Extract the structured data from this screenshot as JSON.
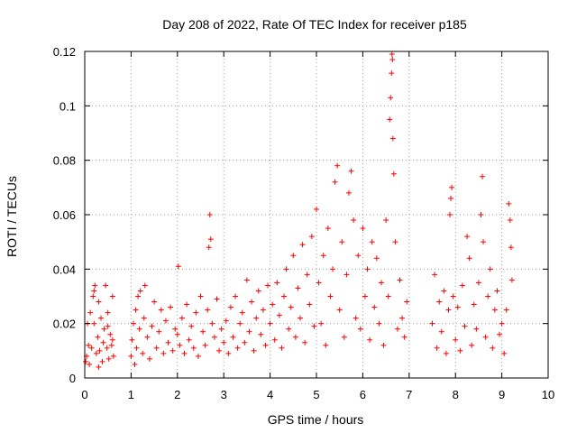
{
  "chart_data": {
    "type": "scatter",
    "title": "Day 208 of 2022, Rate Of TEC Index for receiver p185",
    "xlabel": "GPS time / hours",
    "ylabel": "ROTI / TECUs",
    "xlim": [
      0,
      10
    ],
    "ylim": [
      0,
      0.12
    ],
    "x_ticks": [
      "0",
      "1",
      "2",
      "3",
      "4",
      "5",
      "6",
      "7",
      "8",
      "9",
      "10"
    ],
    "y_ticks": [
      "0",
      "0.02",
      "0.04",
      "0.06",
      "0.08",
      "0.1",
      "0.12"
    ],
    "grid": true,
    "marker": "+",
    "marker_color": "#ff0000",
    "series": [
      {
        "name": "ROTI",
        "points": [
          [
            0.02,
            0.006
          ],
          [
            0.04,
            0.008
          ],
          [
            0.06,
            0.02
          ],
          [
            0.08,
            0.012
          ],
          [
            0.1,
            0.005
          ],
          [
            0.12,
            0.024
          ],
          [
            0.15,
            0.011
          ],
          [
            0.18,
            0.03
          ],
          [
            0.2,
            0.032
          ],
          [
            0.22,
            0.034
          ],
          [
            0.25,
            0.009
          ],
          [
            0.28,
            0.015
          ],
          [
            0.3,
            0.028
          ],
          [
            0.32,
            0.01
          ],
          [
            0.35,
            0.022
          ],
          [
            0.38,
            0.006
          ],
          [
            0.4,
            0.013
          ],
          [
            0.42,
            0.018
          ],
          [
            0.45,
            0.034
          ],
          [
            0.48,
            0.011
          ],
          [
            0.5,
            0.024
          ],
          [
            0.52,
            0.007
          ],
          [
            0.55,
            0.016
          ],
          [
            0.58,
            0.012
          ],
          [
            0.6,
            0.03
          ],
          [
            0.62,
            0.008
          ],
          [
            0.2,
            0.02
          ],
          [
            0.3,
            0.004
          ],
          [
            0.5,
            0.019
          ],
          [
            0.6,
            0.014
          ],
          [
            1.0,
            0.008
          ],
          [
            1.02,
            0.014
          ],
          [
            1.05,
            0.02
          ],
          [
            1.08,
            0.005
          ],
          [
            1.1,
            0.025
          ],
          [
            1.12,
            0.011
          ],
          [
            1.15,
            0.03
          ],
          [
            1.18,
            0.018
          ],
          [
            1.2,
            0.032
          ],
          [
            1.25,
            0.009
          ],
          [
            1.28,
            0.022
          ],
          [
            1.3,
            0.034
          ],
          [
            1.35,
            0.015
          ],
          [
            1.4,
            0.007
          ],
          [
            1.45,
            0.019
          ],
          [
            1.5,
            0.028
          ],
          [
            1.55,
            0.011
          ],
          [
            1.6,
            0.017
          ],
          [
            1.65,
            0.025
          ],
          [
            1.7,
            0.009
          ],
          [
            1.75,
            0.021
          ],
          [
            1.8,
            0.013
          ],
          [
            1.85,
            0.026
          ],
          [
            1.9,
            0.01
          ],
          [
            1.95,
            0.018
          ],
          [
            2.0,
            0.016
          ],
          [
            2.02,
            0.041
          ],
          [
            2.05,
            0.012
          ],
          [
            2.1,
            0.022
          ],
          [
            2.15,
            0.009
          ],
          [
            2.2,
            0.027
          ],
          [
            2.25,
            0.014
          ],
          [
            2.3,
            0.019
          ],
          [
            2.35,
            0.011
          ],
          [
            2.4,
            0.024
          ],
          [
            2.45,
            0.008
          ],
          [
            2.5,
            0.03
          ],
          [
            2.55,
            0.017
          ],
          [
            2.6,
            0.012
          ],
          [
            2.65,
            0.025
          ],
          [
            2.68,
            0.048
          ],
          [
            2.7,
            0.06
          ],
          [
            2.72,
            0.051
          ],
          [
            2.75,
            0.02
          ],
          [
            2.8,
            0.015
          ],
          [
            2.85,
            0.029
          ],
          [
            2.9,
            0.01
          ],
          [
            2.95,
            0.018
          ],
          [
            3.0,
            0.013
          ],
          [
            3.05,
            0.021
          ],
          [
            3.1,
            0.009
          ],
          [
            3.15,
            0.026
          ],
          [
            3.2,
            0.015
          ],
          [
            3.25,
            0.03
          ],
          [
            3.3,
            0.011
          ],
          [
            3.35,
            0.02
          ],
          [
            3.4,
            0.024
          ],
          [
            3.45,
            0.013
          ],
          [
            3.5,
            0.036
          ],
          [
            3.55,
            0.017
          ],
          [
            3.6,
            0.028
          ],
          [
            3.65,
            0.01
          ],
          [
            3.7,
            0.022
          ],
          [
            3.75,
            0.032
          ],
          [
            3.8,
            0.016
          ],
          [
            3.85,
            0.025
          ],
          [
            3.9,
            0.012
          ],
          [
            3.95,
            0.034
          ],
          [
            4.0,
            0.02
          ],
          [
            4.05,
            0.027
          ],
          [
            4.1,
            0.014
          ],
          [
            4.15,
            0.035
          ],
          [
            4.2,
            0.023
          ],
          [
            4.25,
            0.011
          ],
          [
            4.3,
            0.03
          ],
          [
            4.35,
            0.04
          ],
          [
            4.4,
            0.018
          ],
          [
            4.45,
            0.026
          ],
          [
            4.5,
            0.045
          ],
          [
            4.55,
            0.015
          ],
          [
            4.6,
            0.033
          ],
          [
            4.65,
            0.022
          ],
          [
            4.7,
            0.049
          ],
          [
            4.75,
            0.013
          ],
          [
            4.8,
            0.038
          ],
          [
            4.85,
            0.027
          ],
          [
            4.9,
            0.052
          ],
          [
            4.95,
            0.019
          ],
          [
            5.0,
            0.062
          ],
          [
            5.05,
            0.035
          ],
          [
            5.1,
            0.02
          ],
          [
            5.15,
            0.045
          ],
          [
            5.2,
            0.012
          ],
          [
            5.25,
            0.055
          ],
          [
            5.3,
            0.03
          ],
          [
            5.35,
            0.04
          ],
          [
            5.4,
            0.072
          ],
          [
            5.45,
            0.078
          ],
          [
            5.5,
            0.025
          ],
          [
            5.55,
            0.05
          ],
          [
            5.6,
            0.015
          ],
          [
            5.65,
            0.038
          ],
          [
            5.7,
            0.068
          ],
          [
            5.75,
            0.076
          ],
          [
            5.8,
            0.058
          ],
          [
            5.85,
            0.022
          ],
          [
            5.9,
            0.045
          ],
          [
            5.95,
            0.018
          ],
          [
            6.0,
            0.055
          ],
          [
            6.05,
            0.03
          ],
          [
            6.1,
            0.04
          ],
          [
            6.15,
            0.014
          ],
          [
            6.2,
            0.05
          ],
          [
            6.25,
            0.026
          ],
          [
            6.3,
            0.044
          ],
          [
            6.35,
            0.02
          ],
          [
            6.4,
            0.035
          ],
          [
            6.45,
            0.012
          ],
          [
            6.5,
            0.058
          ],
          [
            6.55,
            0.03
          ],
          [
            6.58,
            0.095
          ],
          [
            6.6,
            0.103
          ],
          [
            6.62,
            0.112
          ],
          [
            6.63,
            0.119
          ],
          [
            6.64,
            0.117
          ],
          [
            6.65,
            0.088
          ],
          [
            6.67,
            0.075
          ],
          [
            6.7,
            0.05
          ],
          [
            6.75,
            0.018
          ],
          [
            6.8,
            0.036
          ],
          [
            6.85,
            0.022
          ],
          [
            6.9,
            0.015
          ],
          [
            6.95,
            0.028
          ],
          [
            7.5,
            0.02
          ],
          [
            7.55,
            0.038
          ],
          [
            7.6,
            0.011
          ],
          [
            7.65,
            0.028
          ],
          [
            7.7,
            0.017
          ],
          [
            7.75,
            0.032
          ],
          [
            7.8,
            0.009
          ],
          [
            7.85,
            0.025
          ],
          [
            7.88,
            0.06
          ],
          [
            7.9,
            0.066
          ],
          [
            7.92,
            0.07
          ],
          [
            7.95,
            0.03
          ],
          [
            8.0,
            0.014
          ],
          [
            8.05,
            0.026
          ],
          [
            8.1,
            0.01
          ],
          [
            8.15,
            0.034
          ],
          [
            8.2,
            0.019
          ],
          [
            8.25,
            0.052
          ],
          [
            8.3,
            0.044
          ],
          [
            8.35,
            0.012
          ],
          [
            8.4,
            0.027
          ],
          [
            8.45,
            0.018
          ],
          [
            8.5,
            0.035
          ],
          [
            8.55,
            0.06
          ],
          [
            8.58,
            0.074
          ],
          [
            8.6,
            0.05
          ],
          [
            8.65,
            0.015
          ],
          [
            8.7,
            0.03
          ],
          [
            8.75,
            0.04
          ],
          [
            8.8,
            0.011
          ],
          [
            8.85,
            0.025
          ],
          [
            8.9,
            0.032
          ],
          [
            8.95,
            0.016
          ],
          [
            9.0,
            0.02
          ],
          [
            9.05,
            0.009
          ],
          [
            9.1,
            0.025
          ],
          [
            9.15,
            0.064
          ],
          [
            9.18,
            0.058
          ],
          [
            9.2,
            0.048
          ],
          [
            9.22,
            0.036
          ]
        ]
      }
    ]
  }
}
